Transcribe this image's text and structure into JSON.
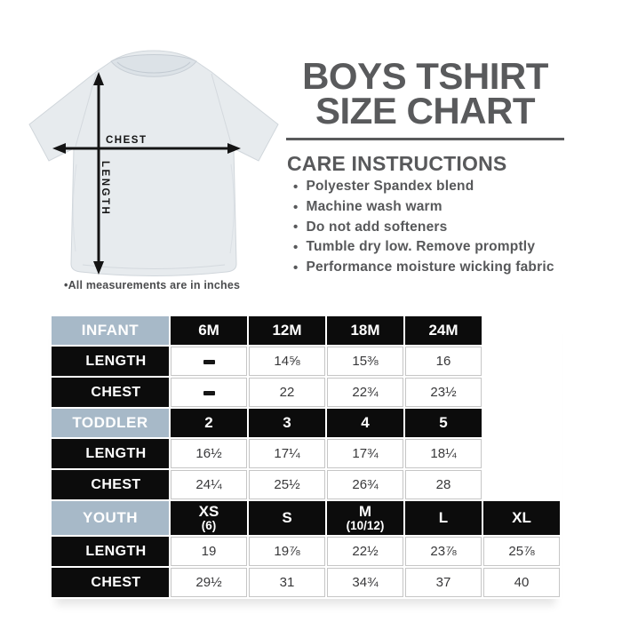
{
  "diagram": {
    "chest_label": "CHEST",
    "length_label": "LENGTH",
    "note": "•All measurements are in inches"
  },
  "header": {
    "title_line1": "BOYS TSHIRT",
    "title_line2": "SIZE CHART"
  },
  "care": {
    "heading": "CARE INSTRUCTIONS",
    "bullet": "•",
    "items": [
      "Polyester Spandex blend",
      "Machine wash warm",
      "Do not add softeners",
      "Tumble dry low. Remove promptly",
      "Performance moisture wicking fabric"
    ]
  },
  "chart_data": {
    "type": "table",
    "units": "inches",
    "row_labels": {
      "length": "LENGTH",
      "chest": "CHEST"
    },
    "sections": [
      {
        "name": "INFANT",
        "sizes": [
          [
            "6M"
          ],
          [
            "12M"
          ],
          [
            "18M"
          ],
          [
            "24M"
          ]
        ],
        "length": [
          "-",
          "14⅝",
          "15⅜",
          "16"
        ],
        "chest": [
          "-",
          "22",
          "22¾",
          "23½"
        ]
      },
      {
        "name": "TODDLER",
        "sizes": [
          [
            "2"
          ],
          [
            "3"
          ],
          [
            "4"
          ],
          [
            "5"
          ]
        ],
        "length": [
          "16½",
          "17¼",
          "17¾",
          "18¼"
        ],
        "chest": [
          "24¼",
          "25½",
          "26¾",
          "28"
        ]
      },
      {
        "name": "YOUTH",
        "sizes": [
          [
            "XS",
            "(6)"
          ],
          [
            "S"
          ],
          [
            "M",
            "(10/12)"
          ],
          [
            "L"
          ],
          [
            "XL"
          ]
        ],
        "length": [
          "19",
          "19⅞",
          "22½",
          "23⅞",
          "25⅞"
        ],
        "chest": [
          "29½",
          "31",
          "34¾",
          "37",
          "40"
        ]
      }
    ]
  },
  "colors": {
    "section_header_bg": "#a7b9c8",
    "cell_black": "#0c0c0c",
    "title_gray": "#595a5c",
    "shirt_fill": "#e7ebee"
  }
}
